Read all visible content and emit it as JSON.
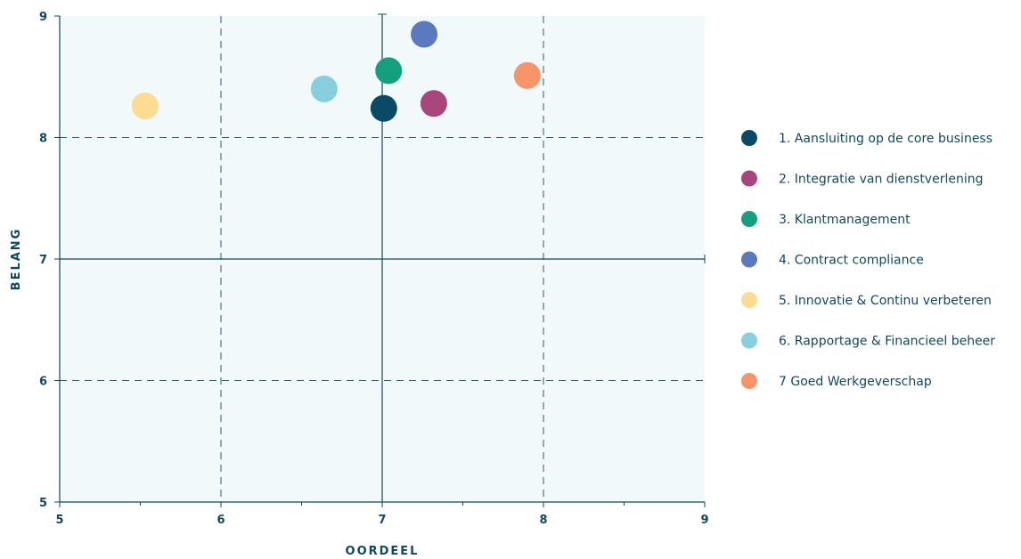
{
  "chart_data": {
    "type": "scatter",
    "xlabel": "OORDEEL",
    "ylabel": "BELANG",
    "xlim": [
      5,
      9
    ],
    "ylim": [
      5,
      9
    ],
    "x_ticks": [
      "5",
      "6",
      "7",
      "8",
      "9"
    ],
    "y_ticks": [
      "5",
      "6",
      "7",
      "8",
      "9"
    ],
    "grid": true,
    "legend_position": "right",
    "points": [
      {
        "label": "1. Aansluiting op de core business",
        "x": 7.01,
        "y": 8.24,
        "color": "#0b4a66"
      },
      {
        "label": "2. Integratie van dienstverlening",
        "x": 7.32,
        "y": 8.28,
        "color": "#a8457a"
      },
      {
        "label": "3. Klantmanagement",
        "x": 7.04,
        "y": 8.55,
        "color": "#13a07f"
      },
      {
        "label": "4. Contract compliance",
        "x": 7.26,
        "y": 8.85,
        "color": "#5b79bf"
      },
      {
        "label": "5. Innovatie & Continu verbeteren",
        "x": 5.53,
        "y": 8.26,
        "color": "#fbdc90"
      },
      {
        "label": "6. Rapportage & Financieel beheer",
        "x": 6.64,
        "y": 8.4,
        "color": "#86d0dd"
      },
      {
        "label": "7 Goed Werkgeverschap",
        "x": 7.9,
        "y": 8.51,
        "color": "#f7946a"
      }
    ]
  }
}
